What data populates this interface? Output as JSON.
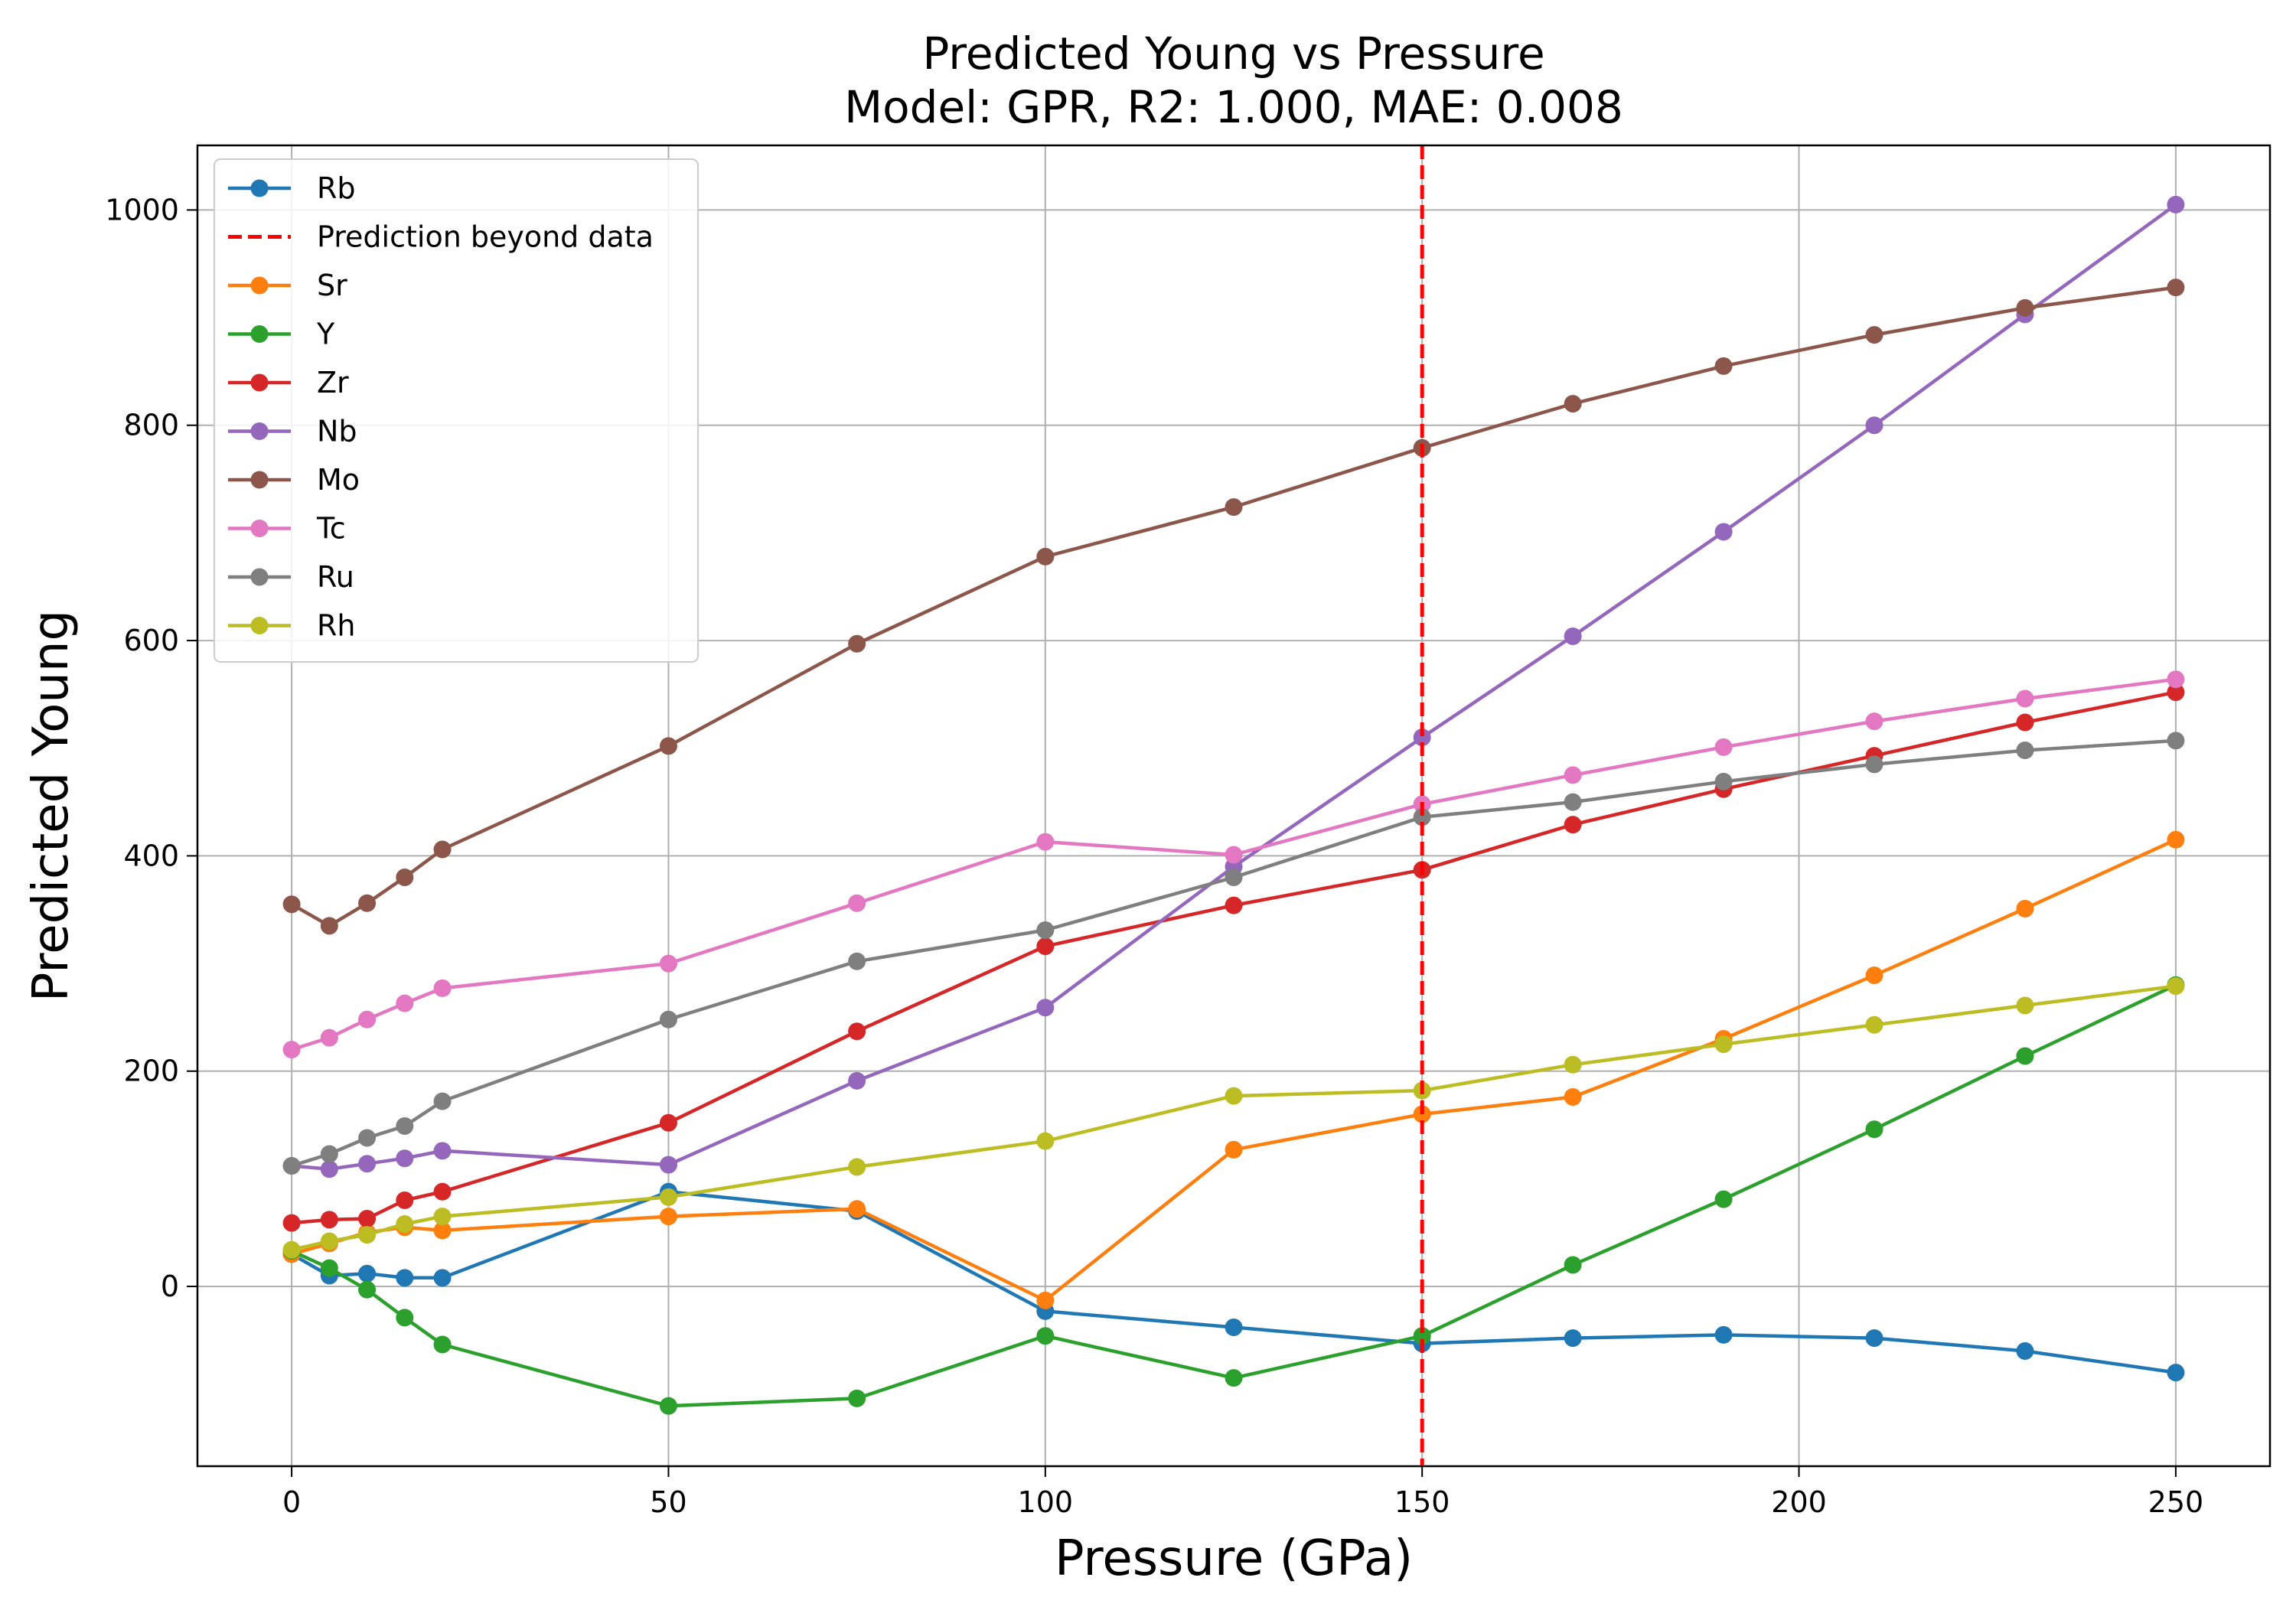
{
  "chart_data": {
    "type": "line",
    "title": "Predicted Young vs Pressure",
    "subtitle": "Model: GPR, R2: 1.000, MAE: 0.008",
    "xlabel": "Pressure (GPa)",
    "ylabel": "Predicted Young",
    "xlim": [
      -12.5,
      262.5
    ],
    "ylim": [
      -167,
      1060
    ],
    "xticks": [
      0,
      50,
      100,
      150,
      200,
      250
    ],
    "yticks": [
      0,
      200,
      400,
      600,
      800,
      1000
    ],
    "grid": true,
    "legend_position": "top-left",
    "x": [
      0,
      5,
      10,
      15,
      20,
      50,
      75,
      100,
      125,
      150,
      170,
      190,
      210,
      230,
      250
    ],
    "series": [
      {
        "name": "Rb",
        "color": "#1f77b4",
        "values": [
          30,
          10,
          12,
          8,
          8,
          88,
          70,
          -23,
          -38,
          -53,
          -48,
          -45,
          -48,
          -60,
          -80
        ]
      },
      {
        "name": "Sr",
        "color": "#ff7f0e",
        "values": [
          30,
          40,
          50,
          55,
          52,
          65,
          72,
          -13,
          127,
          160,
          176,
          230,
          289,
          351,
          415
        ]
      },
      {
        "name": "Y",
        "color": "#2ca02c",
        "values": [
          33,
          17,
          -3,
          -29,
          -54,
          -111,
          -104,
          -46,
          -85,
          -46,
          20,
          81,
          146,
          214,
          280
        ]
      },
      {
        "name": "Zr",
        "color": "#d62728",
        "values": [
          59,
          62,
          63,
          80,
          88,
          152,
          237,
          316,
          354,
          387,
          429,
          462,
          493,
          524,
          552
        ]
      },
      {
        "name": "Nb",
        "color": "#9467bd",
        "values": [
          112,
          109,
          114,
          119,
          126,
          113,
          191,
          259,
          390,
          510,
          604,
          701,
          800,
          903,
          1005
        ]
      },
      {
        "name": "Mo",
        "color": "#8c564b",
        "values": [
          355,
          335,
          356,
          380,
          406,
          502,
          597,
          678,
          724,
          779,
          820,
          855,
          884,
          909,
          928
        ]
      },
      {
        "name": "Tc",
        "color": "#e377c2",
        "values": [
          220,
          231,
          248,
          263,
          277,
          300,
          356,
          413,
          401,
          448,
          475,
          501,
          525,
          546,
          564
        ]
      },
      {
        "name": "Ru",
        "color": "#7f7f7f",
        "values": [
          112,
          123,
          138,
          149,
          172,
          248,
          302,
          331,
          380,
          436,
          450,
          469,
          485,
          498,
          507
        ]
      },
      {
        "name": "Rh",
        "color": "#bcbd22",
        "values": [
          34,
          42,
          48,
          58,
          65,
          83,
          111,
          135,
          177,
          182,
          206,
          225,
          243,
          261,
          279
        ]
      }
    ],
    "vline": {
      "x": 150,
      "label": "Prediction beyond data",
      "color": "#ff0000"
    }
  }
}
